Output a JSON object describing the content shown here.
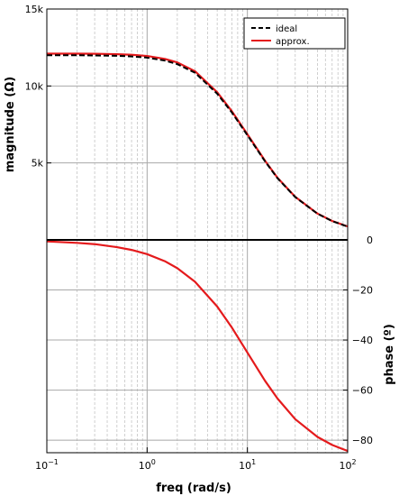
{
  "chart_data": [
    {
      "type": "line",
      "panel": "magnitude",
      "xscale": "log",
      "xlim": [
        0.1,
        100
      ],
      "ylim": [
        0,
        15000
      ],
      "ylabel": "magnitude (Ω)",
      "y_ticks": [
        {
          "value": 5000,
          "label": "5k"
        },
        {
          "value": 10000,
          "label": "10k"
        },
        {
          "value": 15000,
          "label": "15k"
        }
      ],
      "grid": true,
      "legend_position": "top-right",
      "series": [
        {
          "name": "ideal",
          "color": "#000000",
          "dash": "dashed",
          "x": [
            0.1,
            0.2,
            0.3,
            0.5,
            0.7,
            1,
            1.5,
            2,
            3,
            5,
            7,
            10,
            15,
            20,
            30,
            50,
            70,
            100
          ],
          "y": [
            12000,
            11995,
            11985,
            11960,
            11920,
            11840,
            11650,
            11420,
            10860,
            9500,
            8280,
            6800,
            5100,
            4000,
            2780,
            1700,
            1220,
            860
          ]
        },
        {
          "name": "approx.",
          "color": "#e41a1c",
          "dash": "solid",
          "x": [
            0.1,
            0.2,
            0.3,
            0.5,
            0.7,
            1,
            1.5,
            2,
            3,
            5,
            7,
            10,
            15,
            20,
            30,
            50,
            70,
            100
          ],
          "y": [
            12100,
            12098,
            12090,
            12065,
            12025,
            11950,
            11760,
            11530,
            10960,
            9590,
            8360,
            6860,
            5140,
            4030,
            2800,
            1710,
            1230,
            870
          ]
        }
      ]
    },
    {
      "type": "line",
      "panel": "phase",
      "xscale": "log",
      "xlim": [
        0.1,
        100
      ],
      "ylim": [
        -85,
        0
      ],
      "xlabel": "freq (rad/s)",
      "ylabel": "phase (º)",
      "x_ticks": [
        {
          "value": 0.1,
          "base": "10",
          "exp": "−1"
        },
        {
          "value": 1,
          "base": "10",
          "exp": "0"
        },
        {
          "value": 10,
          "base": "10",
          "exp": "1"
        },
        {
          "value": 100,
          "base": "10",
          "exp": "2"
        }
      ],
      "y_ticks": [
        {
          "value": 0,
          "label": "0"
        },
        {
          "value": -20,
          "label": "−20"
        },
        {
          "value": -40,
          "label": "−40"
        },
        {
          "value": -60,
          "label": "−60"
        },
        {
          "value": -80,
          "label": "−80"
        }
      ],
      "grid": true,
      "series": [
        {
          "color": "#e41a1c",
          "dash": "solid",
          "x": [
            0.1,
            0.2,
            0.3,
            0.5,
            0.7,
            1,
            1.5,
            2,
            3,
            5,
            7,
            10,
            15,
            20,
            30,
            50,
            70,
            100
          ],
          "y": [
            -0.6,
            -1.2,
            -1.7,
            -2.9,
            -4.0,
            -5.7,
            -8.5,
            -11.3,
            -16.7,
            -26.6,
            -35.0,
            -45.0,
            -56.3,
            -63.4,
            -71.6,
            -78.7,
            -81.9,
            -84.3
          ]
        }
      ]
    }
  ]
}
